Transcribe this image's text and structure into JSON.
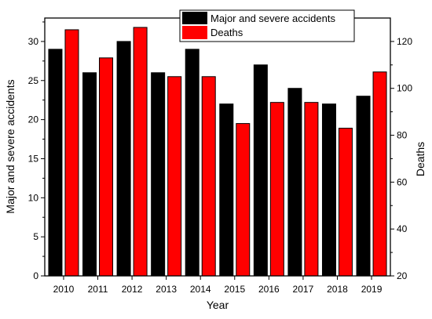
{
  "chart_data": {
    "type": "bar",
    "title": "",
    "xlabel": "Year",
    "ylabel": "Major and severe accidents",
    "y2label": "Deaths",
    "categories": [
      "2010",
      "2011",
      "2012",
      "2013",
      "2014",
      "2015",
      "2016",
      "2017",
      "2018",
      "2019"
    ],
    "ylim": [
      0,
      33
    ],
    "y2lim": [
      20,
      130
    ],
    "yticks": [
      0,
      5,
      10,
      15,
      20,
      25,
      30
    ],
    "y2ticks": [
      20,
      40,
      60,
      80,
      100,
      120
    ],
    "legend_position": "top",
    "series": [
      {
        "name": "Major and severe accidents",
        "axis": "left",
        "color": "#000000",
        "values": [
          29,
          26,
          30,
          26,
          29,
          22,
          27,
          24,
          22,
          23
        ]
      },
      {
        "name": "Deaths",
        "axis": "right",
        "color": "#ff0000",
        "values": [
          125,
          113,
          126,
          105,
          105,
          85,
          94,
          94,
          83,
          107
        ]
      }
    ]
  }
}
